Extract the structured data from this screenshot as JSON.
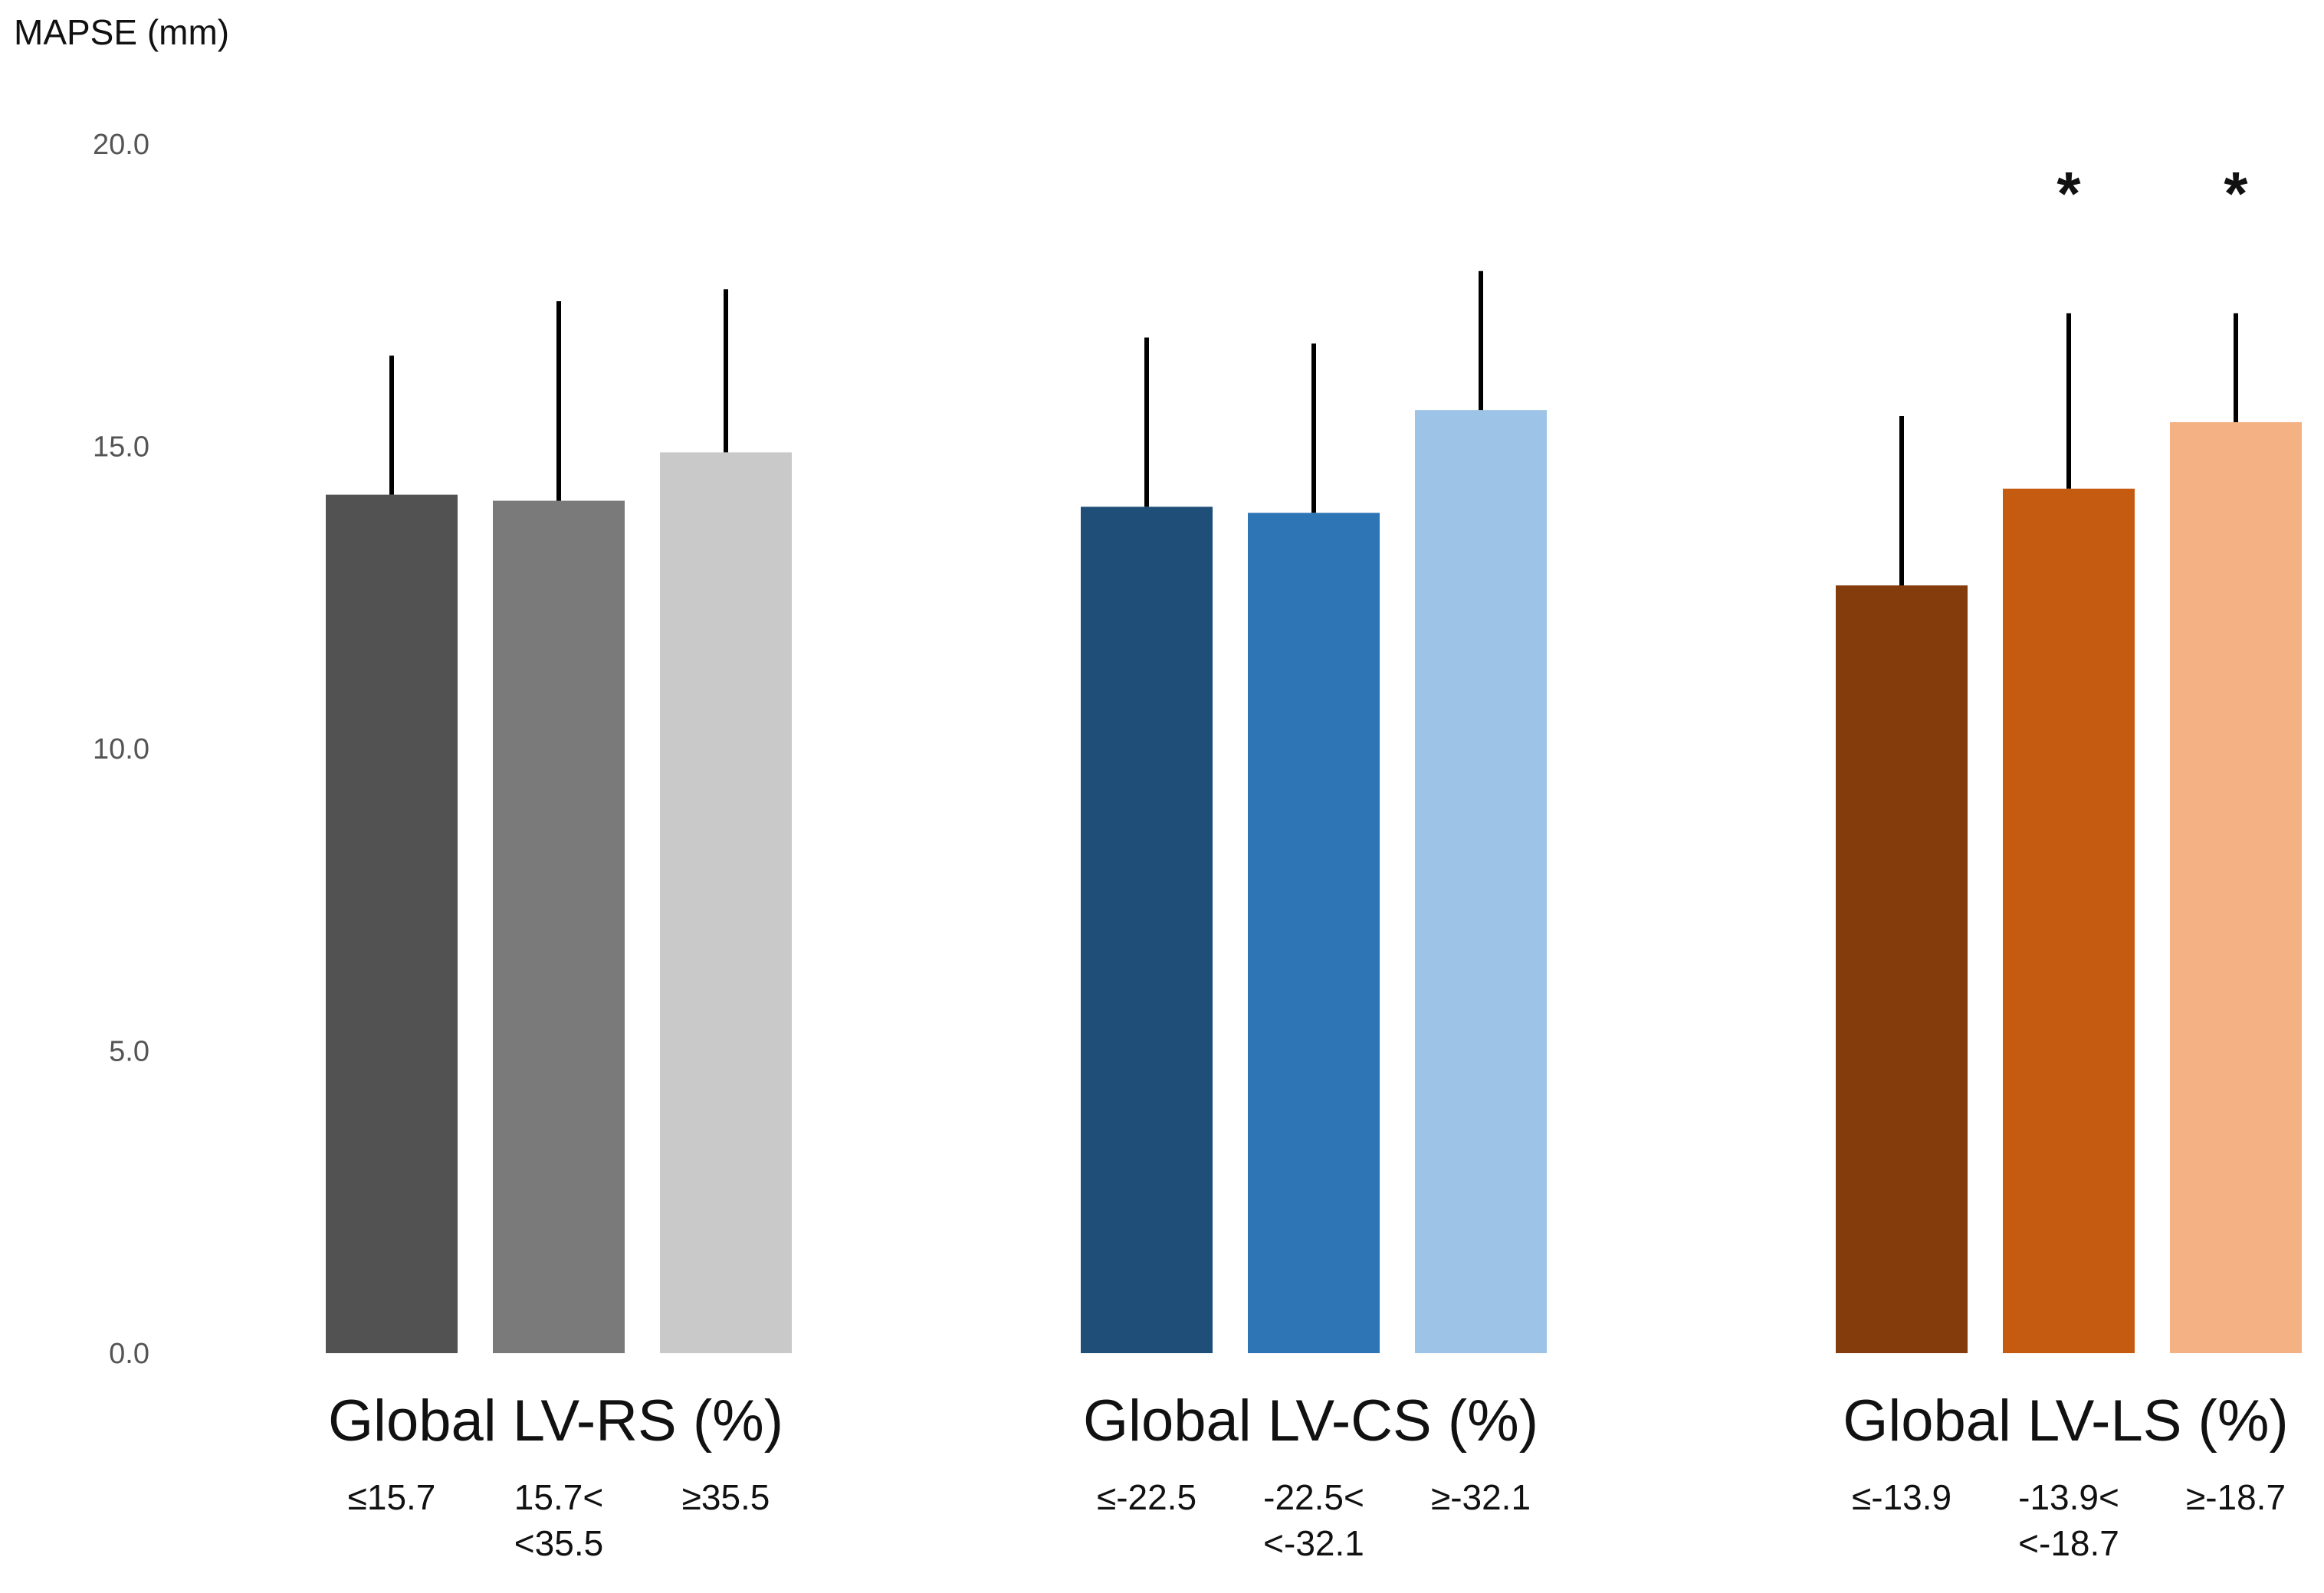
{
  "chart_data": {
    "type": "bar",
    "ylabel": "MAPSE (mm)",
    "ylim": [
      0,
      20
    ],
    "yticks": [
      "0.0",
      "5.0",
      "10.0",
      "15.0",
      "20.0"
    ],
    "grid": false,
    "error_bars": "upper standard deviation",
    "groups": [
      {
        "title": "Global LV-RS (%)",
        "bars": [
          {
            "label_lines": [
              "≤15.7"
            ],
            "value": 14.2,
            "error_top": 16.5,
            "color": "#525252",
            "sig": ""
          },
          {
            "label_lines": [
              "15.7<",
              "<35.5"
            ],
            "value": 14.1,
            "error_top": 17.4,
            "color": "#7a7a7a",
            "sig": ""
          },
          {
            "label_lines": [
              "≥35.5"
            ],
            "value": 14.9,
            "error_top": 17.6,
            "color": "#c9c9c9",
            "sig": ""
          }
        ]
      },
      {
        "title": "Global LV-CS (%)",
        "bars": [
          {
            "label_lines": [
              "≤-22.5"
            ],
            "value": 14.0,
            "error_top": 16.8,
            "color": "#1f4e79",
            "sig": ""
          },
          {
            "label_lines": [
              "-22.5<",
              "<-32.1"
            ],
            "value": 13.9,
            "error_top": 16.7,
            "color": "#2e75b6",
            "sig": ""
          },
          {
            "label_lines": [
              "≥-32.1"
            ],
            "value": 15.6,
            "error_top": 17.9,
            "color": "#9dc3e6",
            "sig": ""
          }
        ]
      },
      {
        "title": "Global LV-LS (%)",
        "bars": [
          {
            "label_lines": [
              "≤-13.9"
            ],
            "value": 12.7,
            "error_top": 15.5,
            "color": "#843c0c",
            "sig": ""
          },
          {
            "label_lines": [
              "-13.9<",
              "<-18.7"
            ],
            "value": 14.3,
            "error_top": 17.2,
            "color": "#c55a11",
            "sig": "*"
          },
          {
            "label_lines": [
              "≥-18.7"
            ],
            "value": 15.4,
            "error_top": 17.2,
            "color": "#f4b183",
            "sig": "*"
          }
        ]
      }
    ]
  }
}
